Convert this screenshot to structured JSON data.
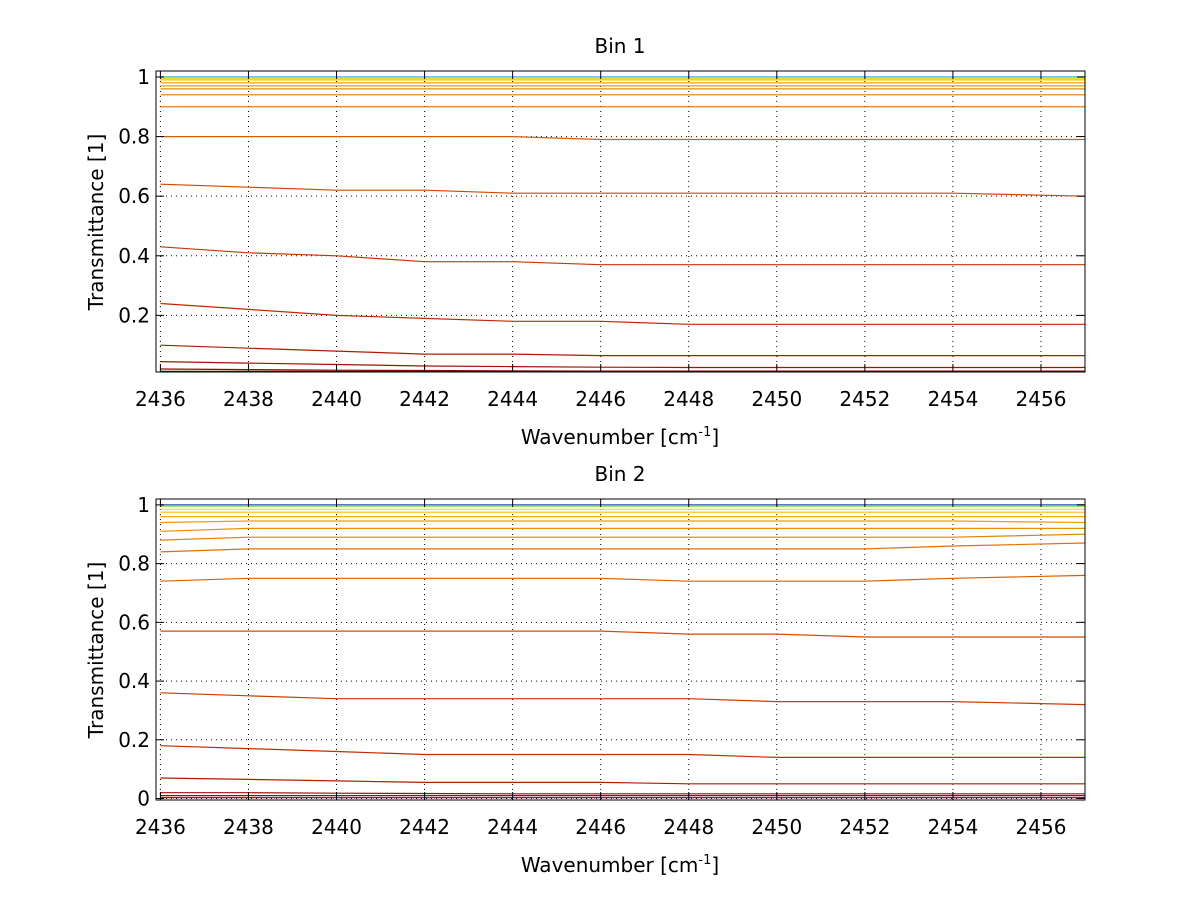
{
  "chart_data": [
    {
      "type": "line",
      "title": "Bin 1",
      "xlabel_main": "Wavenumber [cm",
      "xlabel_sup": "-1",
      "xlabel_close": "]",
      "ylabel": "Transmittance [1]",
      "xlim": [
        2435.9,
        2457.0
      ],
      "ylim": [
        0.01,
        1.02
      ],
      "xticks": [
        2436,
        2438,
        2440,
        2442,
        2444,
        2446,
        2448,
        2450,
        2452,
        2454,
        2456
      ],
      "xtick_labels": [
        "2436",
        "2438",
        "2440",
        "2442",
        "2444",
        "2446",
        "2448",
        "2450",
        "2452",
        "2454",
        "2456"
      ],
      "yticks": [
        0.2,
        0.4,
        0.6,
        0.8,
        1
      ],
      "ytick_labels": [
        "0.2",
        "0.4",
        "0.6",
        "0.8",
        "1"
      ],
      "grid": true,
      "x": [
        2436,
        2438,
        2440,
        2442,
        2444,
        2446,
        2448,
        2450,
        2452,
        2454,
        2457
      ],
      "series": [
        {
          "color": "#1f6fcf",
          "values": [
            1.0,
            1.0,
            1.0,
            1.0,
            1.0,
            1.0,
            1.0,
            1.0,
            1.0,
            1.0,
            1.0
          ]
        },
        {
          "color": "#2fbfe0",
          "values": [
            1.0,
            1.0,
            1.0,
            1.0,
            1.0,
            1.0,
            1.0,
            1.0,
            1.0,
            1.0,
            1.0
          ]
        },
        {
          "color": "#8fe070",
          "values": [
            0.998,
            0.998,
            0.998,
            0.998,
            0.998,
            0.998,
            0.998,
            0.998,
            0.998,
            0.998,
            0.998
          ]
        },
        {
          "color": "#e8e020",
          "values": [
            0.995,
            0.995,
            0.995,
            0.995,
            0.995,
            0.995,
            0.995,
            0.995,
            0.995,
            0.995,
            0.995
          ]
        },
        {
          "color": "#f5c000",
          "values": [
            0.99,
            0.99,
            0.99,
            0.99,
            0.99,
            0.99,
            0.99,
            0.99,
            0.99,
            0.99,
            0.99
          ]
        },
        {
          "color": "#f0a800",
          "values": [
            0.98,
            0.98,
            0.98,
            0.98,
            0.98,
            0.98,
            0.98,
            0.98,
            0.98,
            0.98,
            0.98
          ]
        },
        {
          "color": "#ee9800",
          "values": [
            0.97,
            0.97,
            0.97,
            0.97,
            0.97,
            0.97,
            0.97,
            0.97,
            0.97,
            0.97,
            0.97
          ]
        },
        {
          "color": "#ea8a00",
          "values": [
            0.96,
            0.96,
            0.96,
            0.96,
            0.96,
            0.96,
            0.96,
            0.96,
            0.96,
            0.96,
            0.96
          ]
        },
        {
          "color": "#e67c00",
          "values": [
            0.94,
            0.94,
            0.94,
            0.94,
            0.94,
            0.94,
            0.94,
            0.94,
            0.94,
            0.94,
            0.94
          ]
        },
        {
          "color": "#e06c00",
          "values": [
            0.9,
            0.9,
            0.9,
            0.9,
            0.9,
            0.9,
            0.9,
            0.9,
            0.9,
            0.9,
            0.9
          ]
        },
        {
          "color": "#da5c00",
          "values": [
            0.8,
            0.8,
            0.8,
            0.8,
            0.8,
            0.79,
            0.79,
            0.79,
            0.79,
            0.79,
            0.79
          ]
        },
        {
          "color": "#d24800",
          "values": [
            0.64,
            0.63,
            0.62,
            0.62,
            0.61,
            0.61,
            0.61,
            0.61,
            0.61,
            0.61,
            0.6
          ]
        },
        {
          "color": "#c83800",
          "values": [
            0.43,
            0.41,
            0.4,
            0.38,
            0.38,
            0.37,
            0.37,
            0.37,
            0.37,
            0.37,
            0.37
          ]
        },
        {
          "color": "#c02a00",
          "values": [
            0.24,
            0.22,
            0.2,
            0.19,
            0.18,
            0.18,
            0.17,
            0.17,
            0.17,
            0.17,
            0.17
          ]
        },
        {
          "color": "#b01c00",
          "values": [
            0.1,
            0.09,
            0.08,
            0.07,
            0.07,
            0.065,
            0.065,
            0.065,
            0.065,
            0.065,
            0.065
          ]
        },
        {
          "color": "#a01400",
          "values": [
            0.045,
            0.04,
            0.035,
            0.03,
            0.028,
            0.026,
            0.025,
            0.025,
            0.025,
            0.025,
            0.025
          ]
        },
        {
          "color": "#900c00",
          "values": [
            0.02,
            0.018,
            0.016,
            0.015,
            0.014,
            0.013,
            0.013,
            0.013,
            0.013,
            0.013,
            0.013
          ]
        },
        {
          "color": "#800000",
          "values": [
            0.012,
            0.012,
            0.012,
            0.012,
            0.012,
            0.012,
            0.012,
            0.012,
            0.012,
            0.012,
            0.012
          ]
        }
      ]
    },
    {
      "type": "line",
      "title": "Bin 2",
      "xlabel_main": "Wavenumber [cm",
      "xlabel_sup": "-1",
      "xlabel_close": "]",
      "ylabel": "Transmittance [1]",
      "xlim": [
        2435.9,
        2457.0
      ],
      "ylim": [
        -0.005,
        1.02
      ],
      "xticks": [
        2436,
        2438,
        2440,
        2442,
        2444,
        2446,
        2448,
        2450,
        2452,
        2454,
        2456
      ],
      "xtick_labels": [
        "2436",
        "2438",
        "2440",
        "2442",
        "2444",
        "2446",
        "2448",
        "2450",
        "2452",
        "2454",
        "2456"
      ],
      "yticks": [
        0,
        0.2,
        0.4,
        0.6,
        0.8,
        1
      ],
      "ytick_labels": [
        "0",
        "0.2",
        "0.4",
        "0.6",
        "0.8",
        "1"
      ],
      "grid": true,
      "x": [
        2436,
        2438,
        2440,
        2442,
        2444,
        2446,
        2448,
        2450,
        2452,
        2454,
        2457
      ],
      "series": [
        {
          "color": "#1f3fbf",
          "values": [
            1.0,
            1.0,
            1.0,
            1.0,
            1.0,
            1.0,
            1.0,
            1.0,
            1.0,
            1.0,
            1.0
          ]
        },
        {
          "color": "#2fbfe0",
          "values": [
            0.998,
            0.998,
            0.998,
            0.998,
            0.998,
            0.998,
            0.998,
            0.998,
            0.998,
            0.998,
            0.998
          ]
        },
        {
          "color": "#8fe070",
          "values": [
            0.995,
            0.995,
            0.995,
            0.995,
            0.995,
            0.995,
            0.995,
            0.995,
            0.995,
            0.995,
            0.995
          ]
        },
        {
          "color": "#e8e020",
          "values": [
            0.985,
            0.985,
            0.985,
            0.985,
            0.985,
            0.985,
            0.985,
            0.985,
            0.985,
            0.985,
            0.985
          ]
        },
        {
          "color": "#f5c000",
          "values": [
            0.975,
            0.975,
            0.975,
            0.975,
            0.975,
            0.975,
            0.975,
            0.975,
            0.975,
            0.975,
            0.975
          ]
        },
        {
          "color": "#f0b000",
          "values": [
            0.96,
            0.96,
            0.96,
            0.96,
            0.96,
            0.96,
            0.96,
            0.96,
            0.96,
            0.96,
            0.96
          ]
        },
        {
          "color": "#eea000",
          "values": [
            0.94,
            0.945,
            0.945,
            0.945,
            0.945,
            0.945,
            0.945,
            0.945,
            0.945,
            0.945,
            0.94
          ]
        },
        {
          "color": "#ea9000",
          "values": [
            0.91,
            0.92,
            0.92,
            0.92,
            0.92,
            0.92,
            0.92,
            0.92,
            0.92,
            0.92,
            0.92
          ]
        },
        {
          "color": "#e68000",
          "values": [
            0.88,
            0.89,
            0.89,
            0.89,
            0.89,
            0.89,
            0.89,
            0.89,
            0.89,
            0.89,
            0.9
          ]
        },
        {
          "color": "#e27000",
          "values": [
            0.84,
            0.85,
            0.85,
            0.85,
            0.85,
            0.85,
            0.85,
            0.85,
            0.85,
            0.86,
            0.87
          ]
        },
        {
          "color": "#dc6000",
          "values": [
            0.74,
            0.75,
            0.75,
            0.75,
            0.75,
            0.75,
            0.74,
            0.74,
            0.74,
            0.75,
            0.76
          ]
        },
        {
          "color": "#d44c00",
          "values": [
            0.57,
            0.57,
            0.57,
            0.57,
            0.57,
            0.57,
            0.56,
            0.56,
            0.55,
            0.55,
            0.55
          ]
        },
        {
          "color": "#ca3c00",
          "values": [
            0.36,
            0.35,
            0.34,
            0.34,
            0.34,
            0.34,
            0.34,
            0.33,
            0.33,
            0.33,
            0.32
          ]
        },
        {
          "color": "#c02c00",
          "values": [
            0.18,
            0.17,
            0.16,
            0.15,
            0.15,
            0.15,
            0.15,
            0.14,
            0.14,
            0.14,
            0.14
          ]
        },
        {
          "color": "#b01e00",
          "values": [
            0.07,
            0.065,
            0.06,
            0.055,
            0.055,
            0.055,
            0.05,
            0.05,
            0.05,
            0.05,
            0.05
          ]
        },
        {
          "color": "#a01400",
          "values": [
            0.02,
            0.02,
            0.018,
            0.017,
            0.016,
            0.016,
            0.016,
            0.016,
            0.016,
            0.016,
            0.016
          ]
        },
        {
          "color": "#900c00",
          "values": [
            0.01,
            0.01,
            0.01,
            0.01,
            0.01,
            0.01,
            0.01,
            0.01,
            0.01,
            0.01,
            0.01
          ]
        },
        {
          "color": "#800000",
          "values": [
            0.003,
            0.003,
            0.003,
            0.003,
            0.003,
            0.003,
            0.003,
            0.003,
            0.003,
            0.003,
            0.003
          ]
        }
      ]
    }
  ]
}
